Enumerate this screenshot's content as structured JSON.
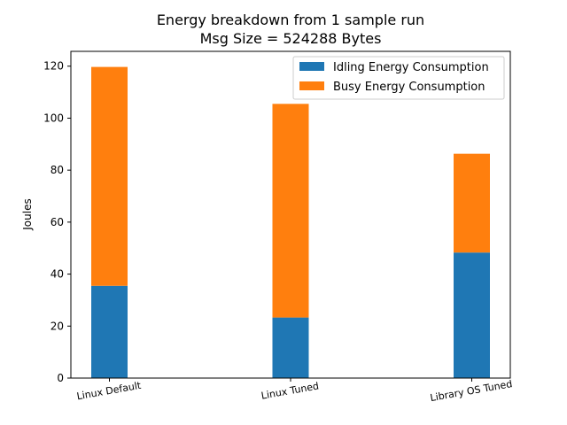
{
  "chart_data": {
    "type": "bar",
    "stacked": true,
    "title_line1": "Energy breakdown from 1 sample run",
    "title_line2": "Msg Size = 524288 Bytes",
    "xlabel": "",
    "ylabel": "Joules",
    "categories": [
      "Linux Default",
      "Linux Tuned",
      "Library OS Tuned"
    ],
    "series": [
      {
        "name": "Idling Energy Consumption",
        "color": "#1f77b4",
        "values": [
          35.5,
          23.3,
          48.3
        ]
      },
      {
        "name": "Busy Energy Consumption",
        "color": "#ff7f0e",
        "values": [
          84.2,
          82.2,
          38.0
        ]
      }
    ],
    "ylim": [
      0,
      125.7
    ],
    "yticks": [
      "0",
      "20",
      "40",
      "60",
      "80",
      "100",
      "120"
    ],
    "legend_position": "top-right",
    "grid": false
  }
}
